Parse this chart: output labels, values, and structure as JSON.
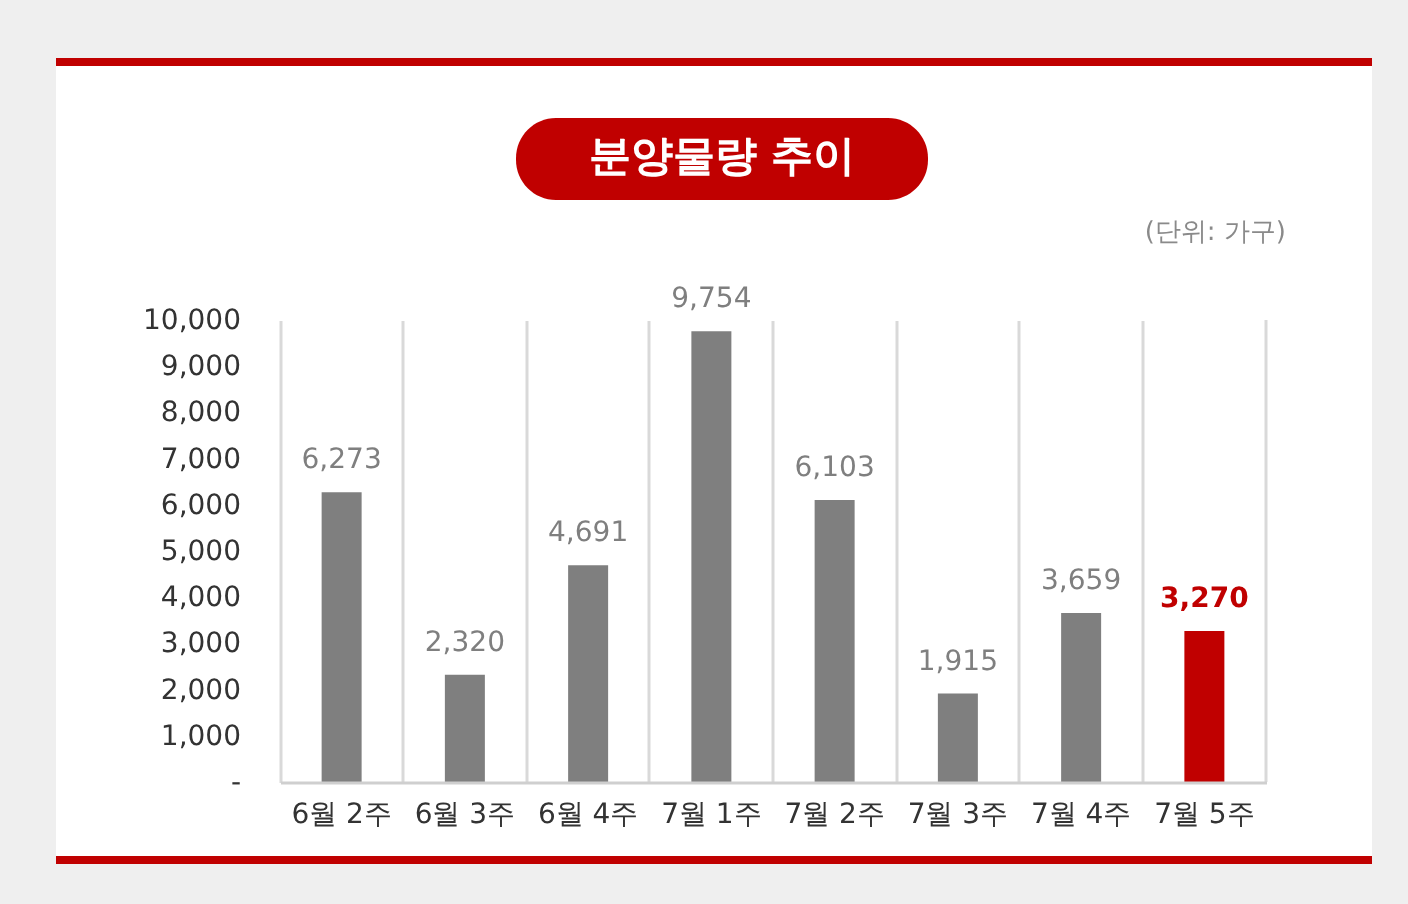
{
  "chart_data": {
    "type": "bar",
    "title": "분양물량 추이",
    "annotations": [
      "(단위: 가구)"
    ],
    "categories": [
      "6월 2주",
      "6월 3주",
      "6월 4주",
      "7월 1주",
      "7월 2주",
      "7월 3주",
      "7월 4주",
      "7월 5주"
    ],
    "values": [
      6273,
      2320,
      4691,
      9754,
      6103,
      1915,
      3659,
      3270
    ],
    "value_labels": [
      "6,273",
      "2,320",
      "4,691",
      "9,754",
      "6,103",
      "1,915",
      "3,659",
      "3,270"
    ],
    "colors": [
      "#7f7f7f",
      "#7f7f7f",
      "#7f7f7f",
      "#7f7f7f",
      "#7f7f7f",
      "#7f7f7f",
      "#7f7f7f",
      "#c00000"
    ],
    "ylim": [
      0,
      10000
    ],
    "yticks": [
      {
        "value": 0,
        "label": "-"
      },
      {
        "value": 1000,
        "label": "1,000"
      },
      {
        "value": 2000,
        "label": "2,000"
      },
      {
        "value": 3000,
        "label": "3,000"
      },
      {
        "value": 4000,
        "label": "4,000"
      },
      {
        "value": 5000,
        "label": "5,000"
      },
      {
        "value": 6000,
        "label": "6,000"
      },
      {
        "value": 7000,
        "label": "7,000"
      },
      {
        "value": 8000,
        "label": "8,000"
      },
      {
        "value": 9000,
        "label": "9,000"
      },
      {
        "value": 10000,
        "label": "10,000"
      }
    ],
    "grid": "x"
  }
}
